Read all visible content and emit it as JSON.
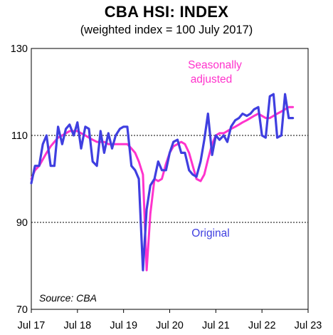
{
  "chart_data": {
    "type": "line",
    "title": "CBA HSI: INDEX",
    "subtitle": "(weighted index = 100 July 2017)",
    "xlabel": "",
    "ylabel": "",
    "ylim": [
      70,
      130
    ],
    "yticks": [
      70,
      90,
      110,
      130
    ],
    "xlim": [
      2017.5,
      2023.5
    ],
    "xtick_labels": [
      "Jul 17",
      "Jul 18",
      "Jul 19",
      "Jul 20",
      "Jul 21",
      "Jul 22",
      "Jul 23"
    ],
    "gridlines": [
      90,
      110
    ],
    "source": "Source: CBA",
    "series": [
      {
        "name": "Seasonally adjusted",
        "color": "#ff33cc",
        "x": [
          2017.5,
          2017.58,
          2017.67,
          2017.75,
          2017.83,
          2017.92,
          2018.0,
          2018.08,
          2018.17,
          2018.25,
          2018.33,
          2018.42,
          2018.5,
          2018.58,
          2018.67,
          2018.75,
          2018.83,
          2018.92,
          2019.0,
          2019.08,
          2019.17,
          2019.25,
          2019.33,
          2019.42,
          2019.5,
          2019.58,
          2019.67,
          2019.75,
          2019.83,
          2019.92,
          2020.0,
          2020.08,
          2020.17,
          2020.25,
          2020.33,
          2020.42,
          2020.5,
          2020.58,
          2020.67,
          2020.75,
          2020.83,
          2020.92,
          2021.0,
          2021.08,
          2021.17,
          2021.25,
          2021.33,
          2021.42,
          2021.5,
          2021.58,
          2021.67,
          2021.75,
          2021.83,
          2021.92,
          2022.0,
          2022.08,
          2022.17,
          2022.25,
          2022.33,
          2022.42,
          2022.5,
          2022.58,
          2022.67,
          2022.75,
          2022.83,
          2022.92,
          2023.0,
          2023.08,
          2023.17
        ],
        "values": [
          100.0,
          102.0,
          103.0,
          104.5,
          106.0,
          107.5,
          108.5,
          109.5,
          110.0,
          110.5,
          111.0,
          111.0,
          111.0,
          110.5,
          110.0,
          109.5,
          109.0,
          108.5,
          108.5,
          108.5,
          108.0,
          108.0,
          108.0,
          108.0,
          108.0,
          108.0,
          107.0,
          106.0,
          104.0,
          101.0,
          79.0,
          92.0,
          100.0,
          99.5,
          100.0,
          103.5,
          106.0,
          107.5,
          108.0,
          108.5,
          108.0,
          106.0,
          103.0,
          100.0,
          99.5,
          101.0,
          104.5,
          108.0,
          110.0,
          110.5,
          110.5,
          111.0,
          111.5,
          112.0,
          112.5,
          113.0,
          113.5,
          114.0,
          114.5,
          115.0,
          114.5,
          114.0,
          114.0,
          114.5,
          115.0,
          115.5,
          116.0,
          116.5,
          116.5
        ]
      },
      {
        "name": "Original",
        "color": "#3f3fe0",
        "x": [
          2017.5,
          2017.58,
          2017.67,
          2017.75,
          2017.83,
          2017.92,
          2018.0,
          2018.08,
          2018.17,
          2018.25,
          2018.33,
          2018.42,
          2018.5,
          2018.58,
          2018.67,
          2018.75,
          2018.83,
          2018.92,
          2019.0,
          2019.08,
          2019.17,
          2019.25,
          2019.33,
          2019.42,
          2019.5,
          2019.58,
          2019.67,
          2019.75,
          2019.83,
          2019.92,
          2020.0,
          2020.08,
          2020.17,
          2020.25,
          2020.33,
          2020.42,
          2020.5,
          2020.58,
          2020.67,
          2020.75,
          2020.83,
          2020.92,
          2021.0,
          2021.08,
          2021.17,
          2021.25,
          2021.33,
          2021.42,
          2021.5,
          2021.58,
          2021.67,
          2021.75,
          2021.83,
          2021.92,
          2022.0,
          2022.08,
          2022.17,
          2022.25,
          2022.33,
          2022.42,
          2022.5,
          2022.58,
          2022.67,
          2022.75,
          2022.83,
          2022.92,
          2023.0,
          2023.08,
          2023.17
        ],
        "values": [
          99.0,
          103.0,
          103.0,
          108.0,
          110.0,
          103.0,
          103.0,
          112.0,
          108.0,
          111.5,
          112.5,
          110.0,
          113.0,
          107.0,
          112.0,
          111.5,
          104.0,
          103.0,
          111.0,
          106.0,
          110.5,
          107.0,
          110.0,
          111.5,
          112.0,
          112.0,
          103.0,
          102.0,
          100.0,
          79.0,
          93.0,
          98.5,
          100.0,
          104.0,
          102.0,
          102.0,
          106.0,
          108.5,
          109.0,
          106.0,
          106.0,
          102.0,
          101.0,
          100.5,
          104.0,
          109.0,
          115.0,
          105.5,
          110.0,
          109.0,
          110.0,
          108.5,
          112.0,
          113.5,
          114.0,
          115.0,
          114.5,
          115.0,
          116.0,
          116.5,
          110.0,
          109.5,
          119.0,
          119.5,
          109.5,
          110.0,
          119.5,
          114.0,
          114.0
        ]
      }
    ],
    "annotations": [
      {
        "text_lines": [
          "Seasonally",
          "adjusted"
        ],
        "series": "Seasonally adjusted"
      },
      {
        "text_lines": [
          "Original"
        ],
        "series": "Original"
      }
    ]
  }
}
